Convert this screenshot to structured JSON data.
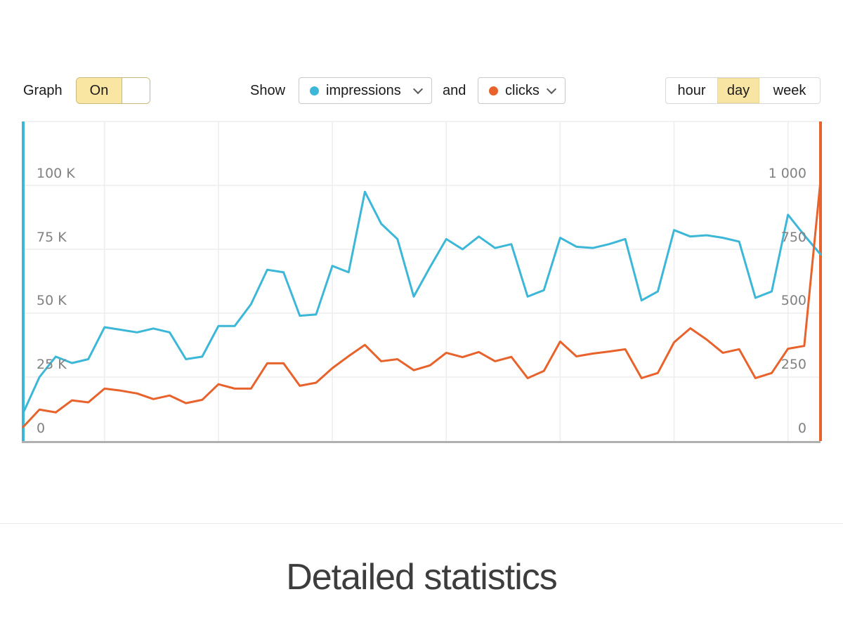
{
  "controls": {
    "graph_label": "Graph",
    "toggle": {
      "on_label": "On",
      "state": "on"
    },
    "show_label": "Show",
    "and_label": "and",
    "series_select_1": {
      "value": "impressions",
      "dot_color": "#3cb7d8"
    },
    "series_select_2": {
      "value": "clicks",
      "dot_color": "#e8622c"
    },
    "granularity": {
      "options": [
        "hour",
        "day",
        "week"
      ],
      "selected": "day"
    }
  },
  "heading": {
    "title": "Detailed statistics"
  },
  "colors": {
    "impressions": "#3cb7d8",
    "clicks": "#e8622c",
    "selected_yellow": "#f9e5a3",
    "toggle_border": "#c9b97a",
    "gridline": "#ededed",
    "x_axis": "#b0b0b0",
    "tick_text": "#818181"
  },
  "chart_data": {
    "type": "line",
    "x_unit": "day",
    "num_points": 50,
    "x_gridline_indices": [
      5,
      12,
      19,
      26,
      33,
      40,
      47
    ],
    "grid": true,
    "legend_position": "none",
    "left_axis": {
      "ticks": [
        "100 K",
        "75 K",
        "50 K",
        "25 K",
        "0"
      ],
      "tick_values": [
        100000,
        75000,
        50000,
        25000,
        0
      ],
      "range": [
        0,
        125000
      ]
    },
    "right_axis": {
      "ticks": [
        "1 000",
        "750",
        "500",
        "250",
        "0"
      ],
      "tick_values": [
        1000,
        750,
        500,
        250,
        0
      ],
      "range": [
        0,
        1250
      ]
    },
    "series": [
      {
        "name": "impressions",
        "axis": "left",
        "color": "#3cb7d8",
        "values": [
          11000,
          25000,
          33000,
          30500,
          32000,
          44500,
          43500,
          42500,
          44000,
          42500,
          32000,
          33000,
          45000,
          45000,
          53500,
          67000,
          66000,
          49000,
          49500,
          68500,
          66000,
          97500,
          85000,
          79000,
          56500,
          68000,
          79000,
          75000,
          80000,
          75500,
          77000,
          56500,
          59000,
          79500,
          76000,
          75500,
          77000,
          79000,
          55000,
          58500,
          82500,
          80000,
          80500,
          79500,
          78000,
          56000,
          58500,
          88500,
          80500,
          73000
        ]
      },
      {
        "name": "clicks",
        "axis": "right",
        "color": "#e8622c",
        "values": [
          55,
          123,
          112,
          159,
          151,
          205,
          197,
          186,
          164,
          178,
          148,
          161,
          222,
          205,
          205,
          304,
          304,
          216,
          228,
          285,
          332,
          376,
          312,
          320,
          277,
          296,
          345,
          328,
          348,
          312,
          329,
          246,
          274,
          389,
          331,
          342,
          350,
          359,
          246,
          266,
          386,
          441,
          397,
          345,
          359,
          246,
          266,
          361,
          372,
          1020
        ]
      }
    ]
  }
}
